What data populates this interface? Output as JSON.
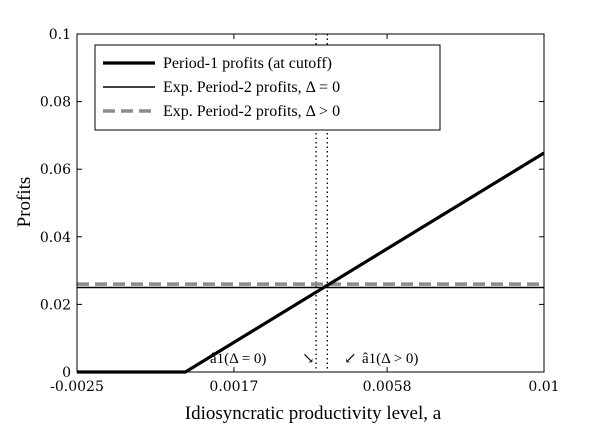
{
  "chart_data": {
    "type": "line",
    "xlabel": "Idiosyncratic productivity level, a",
    "ylabel": "Profits",
    "xlim": [
      -0.0025,
      0.01
    ],
    "ylim": [
      0,
      0.1
    ],
    "xticks": [
      -0.0025,
      0.0017,
      0.0058,
      0.01
    ],
    "xtick_labels": [
      "-0.0025",
      "0.0017",
      "0.0058",
      "0.01"
    ],
    "yticks": [
      0,
      0.02,
      0.04,
      0.06,
      0.08,
      0.1
    ],
    "ytick_labels": [
      "0",
      "0.02",
      "0.04",
      "0.06",
      "0.08",
      "0.1"
    ],
    "grid": false,
    "legend_position": "top-left",
    "series": [
      {
        "name": "Period-1 profits (at cutoff)",
        "style": "solid-thick",
        "color": "#000000",
        "x": [
          -0.0025,
          0.0004,
          0.01
        ],
        "y": [
          0,
          0,
          0.0648
        ]
      },
      {
        "name": "Exp. Period-2 profits, Δ = 0",
        "style": "solid-thin",
        "color": "#000000",
        "x": [
          -0.0025,
          0.01
        ],
        "y": [
          0.025,
          0.025
        ]
      },
      {
        "name": "Exp. Period-2 profits, Δ > 0",
        "style": "dashed",
        "color": "#8c8c8c",
        "x": [
          -0.0025,
          0.01
        ],
        "y": [
          0.026,
          0.026
        ]
      }
    ],
    "vlines": [
      {
        "x": 0.0039,
        "style": "dotted"
      },
      {
        "x": 0.0042,
        "style": "dotted"
      }
    ],
    "annotations": [
      {
        "text": "â1(Δ = 0)",
        "arrow": "↘"
      },
      {
        "text": "â1(Δ > 0)",
        "arrow": "↙"
      }
    ]
  }
}
